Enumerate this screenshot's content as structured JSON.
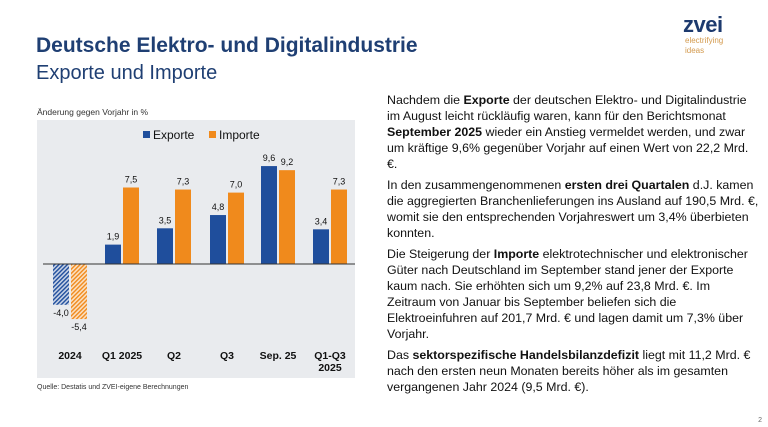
{
  "header": {
    "title": "Deutsche Elektro- und Digitalindustrie",
    "subtitle": "Exporte und Importe"
  },
  "logo": {
    "name": "zvei",
    "tagline1": "electrifying",
    "tagline2": "ideas"
  },
  "chart_data": {
    "type": "bar",
    "ylabel": "Änderung gegen Vorjahr in %",
    "categories": [
      "2024",
      "Q1 2025",
      "Q2",
      "Q3",
      "Sep. 25",
      "Q1-Q3\n2025"
    ],
    "series": [
      {
        "name": "Exporte",
        "color": "#1f4e9c",
        "values": [
          -4.0,
          1.9,
          3.5,
          4.8,
          9.6,
          3.4
        ],
        "labels": [
          "-4,0",
          "1,9",
          "3,5",
          "4,8",
          "9,6",
          "3,4"
        ]
      },
      {
        "name": "Importe",
        "color": "#f08a1c",
        "values": [
          -5.4,
          7.5,
          7.3,
          7.0,
          9.2,
          7.3
        ],
        "labels": [
          "-5,4",
          "7,5",
          "7,3",
          "7,0",
          "9,2",
          "7,3"
        ]
      }
    ],
    "hatched_categories": [
      "2024"
    ],
    "legend": "top-center",
    "source": "Quelle: Destatis und ZVEI-eigene Berechnungen"
  },
  "text": {
    "paragraphs": [
      [
        {
          "t": "Nachdem die "
        },
        {
          "t": "Exporte",
          "b": true
        },
        {
          "t": " der deutschen Elektro- und Digitalindustrie im August leicht rückläufig waren, kann für den Berichtsmonat "
        },
        {
          "t": "September 2025",
          "b": true
        },
        {
          "t": " wieder ein Anstieg vermeldet werden, und zwar um kräftige 9,6% gegenüber Vorjahr auf einen Wert von 22,2 Mrd. €."
        }
      ],
      [
        {
          "t": "In den zusammengenommenen "
        },
        {
          "t": "ersten drei Quartalen",
          "b": true
        },
        {
          "t": " d.J. kamen die aggregierten Branchenlieferungen ins Ausland auf 190,5 Mrd. €, womit sie den entsprechenden Vorjahreswert um 3,4% überbieten konnten."
        }
      ],
      [
        {
          "t": "Die Steigerung der "
        },
        {
          "t": "Importe",
          "b": true
        },
        {
          "t": " elektrotechnischer und elektronischer Güter nach Deutschland im September stand jener der Exporte kaum nach. Sie erhöhten sich um 9,2% auf 23,8 Mrd. €. Im Zeitraum von Januar bis September beliefen sich die Elektroeinfuhren auf 201,7 Mrd. € und lagen damit um 7,3% über Vorjahr."
        }
      ],
      [
        {
          "t": "Das "
        },
        {
          "t": "sektorspezifische Handelsbilanzdefizit",
          "b": true
        },
        {
          "t": " liegt mit 11,2 Mrd. € nach den ersten neun Monaten bereits höher als im gesamten vergangenen Jahr 2024 (9,5 Mrd. €)."
        }
      ]
    ]
  },
  "page_number": "2"
}
